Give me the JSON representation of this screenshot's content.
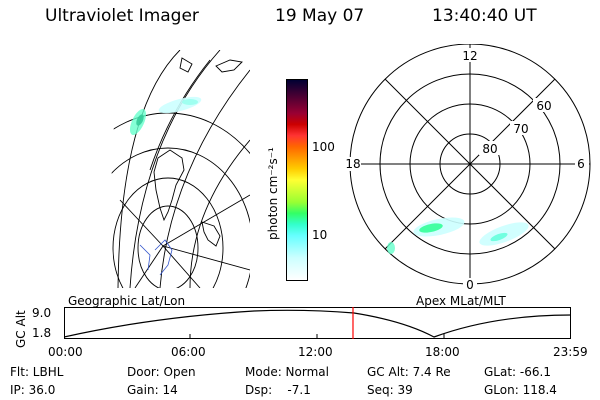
{
  "header": {
    "instrument": "Ultraviolet Imager",
    "date": "19 May 07",
    "time": "13:40:40 UT"
  },
  "colorbar": {
    "unit_label": "photon cm⁻²s⁻¹",
    "ticks": [
      "100",
      "10"
    ],
    "colors": [
      "#000033",
      "#330033",
      "#660033",
      "#990033",
      "#cc0000",
      "#ff3333",
      "#ff6600",
      "#ff9900",
      "#ffcc00",
      "#ffff33",
      "#ccff33",
      "#99ff33",
      "#33ff66",
      "#33ffcc",
      "#66ffff",
      "#99ffff",
      "#ccffff",
      "#e6ffff",
      "#ffffff"
    ]
  },
  "polar": {
    "mlt_labels": {
      "top": "12",
      "left": "18",
      "right": "6",
      "bottom": "0"
    },
    "lat_labels": [
      "60",
      "70",
      "80"
    ]
  },
  "map_labels": {
    "left": "Geographic Lat/Lon",
    "right": "Apex MLat/MLT"
  },
  "altitude_plot": {
    "ylabel": "GC Alt",
    "ymax": "9.0",
    "ymin": "1.8",
    "xticks": [
      "00:00",
      "06:00",
      "12:00",
      "18:00",
      "23:59"
    ],
    "current_time_fraction": 0.57,
    "marker_color": "#ff0000"
  },
  "info": {
    "filter": "Flt: LBHL",
    "door": "Door: Open",
    "mode": "Mode: Normal",
    "gc_alt": "GC Alt: 7.4 Re",
    "glat": "GLat: -66.1",
    "ip": "IP: 36.0",
    "gain": "Gain: 14",
    "dsp": "Dsp:    -7.1",
    "seq": "Seq: 39",
    "glon": "GLon: 118.4"
  }
}
